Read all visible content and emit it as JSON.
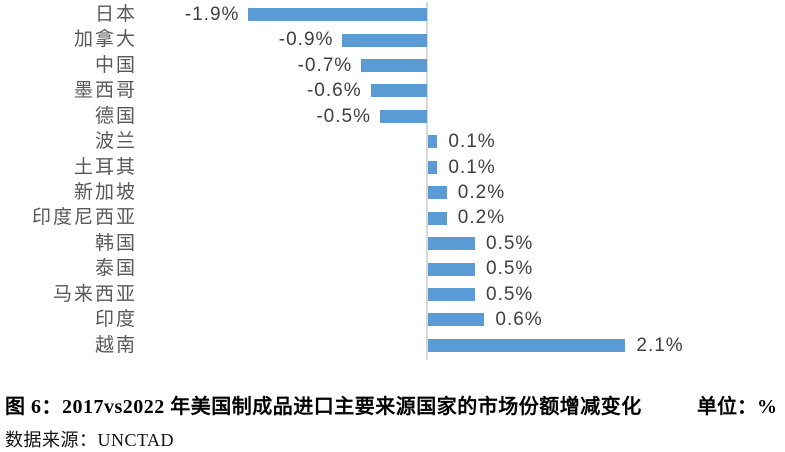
{
  "figure": {
    "caption": "图 6：2017vs2022 年美国制成品进口主要来源国家的市场份额增减变化",
    "unit": "单位：%",
    "source": "数据来源：UNCTAD"
  },
  "chart_data": {
    "type": "bar",
    "orientation": "horizontal",
    "title": "图 6：2017vs2022 年美国制成品进口主要来源国家的市场份额增减变化",
    "xlabel": "",
    "ylabel": "",
    "unit": "%",
    "categories": [
      "日本",
      "加拿大",
      "中国",
      "墨西哥",
      "德国",
      "波兰",
      "土耳其",
      "新加坡",
      "印度尼西亚",
      "韩国",
      "泰国",
      "马来西亚",
      "印度",
      "越南"
    ],
    "values": [
      -1.9,
      -0.9,
      -0.7,
      -0.6,
      -0.5,
      0.1,
      0.1,
      0.2,
      0.2,
      0.5,
      0.5,
      0.5,
      0.6,
      2.1
    ],
    "data_labels": [
      "-1.9%",
      "-0.9%",
      "-0.7%",
      "-0.6%",
      "-0.5%",
      "0.1%",
      "0.1%",
      "0.2%",
      "0.2%",
      "0.5%",
      "0.5%",
      "0.5%",
      "0.6%",
      "2.1%"
    ],
    "xlim": [
      -2.0,
      3.8
    ],
    "grid": false,
    "legend": false,
    "bar_color": "#5B9BD5",
    "axis_line_color": "#D9D9D9",
    "category_label_color": "#595959",
    "value_label_color": "#3F3F3F"
  }
}
